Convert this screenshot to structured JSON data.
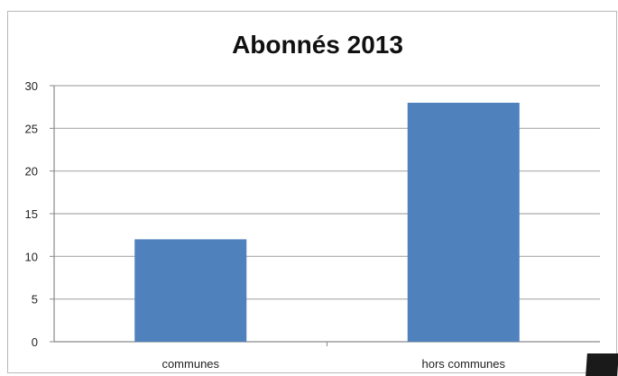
{
  "chart_data": {
    "type": "bar",
    "title": "Abonnés 2013",
    "xlabel": "",
    "ylabel": "",
    "categories": [
      "communes",
      "hors communes"
    ],
    "values": [
      12,
      28
    ],
    "ylim": [
      0,
      30
    ],
    "yticks": [
      "0",
      "5",
      "10",
      "15",
      "20",
      "25",
      "30"
    ],
    "grid": true,
    "legend": "none",
    "bar_color": "#4f81bd"
  }
}
